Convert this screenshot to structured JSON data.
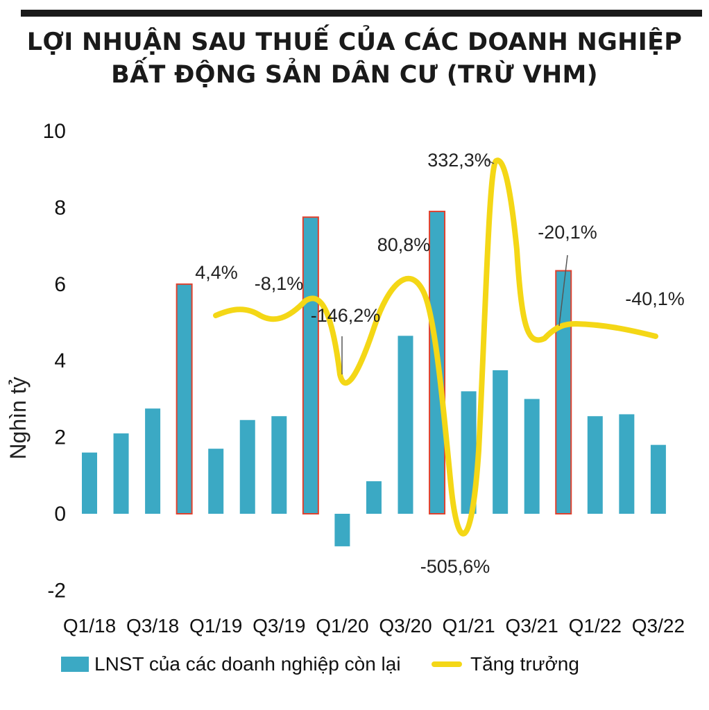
{
  "title_line1": "LỢI NHUẬN SAU THUẾ CỦA CÁC DOANH NGHIỆP",
  "title_line2": "BẤT ĐỘNG SẢN DÂN CƯ (TRỪ VHM)",
  "colors": {
    "bar": "#3ba9c4",
    "bar_highlight_edge": "#e0412e",
    "line": "#f4d716"
  },
  "chart_data": {
    "type": "bar",
    "ylabel": "Nghìn tỷ",
    "ylim": [
      -2,
      10
    ],
    "yticks": [
      "-2",
      "0",
      "2",
      "4",
      "6",
      "8",
      "10"
    ],
    "categories": [
      "Q1/18",
      "Q2/18",
      "Q3/18",
      "Q4/18",
      "Q1/19",
      "Q2/19",
      "Q3/19",
      "Q4/19",
      "Q1/20",
      "Q2/20",
      "Q3/20",
      "Q4/20",
      "Q1/21",
      "Q2/21",
      "Q3/21",
      "Q4/21",
      "Q1/22",
      "Q2/22",
      "Q3/22"
    ],
    "xtick_labels": [
      "Q1/18",
      "Q3/18",
      "Q1/19",
      "Q3/19",
      "Q1/20",
      "Q3/20",
      "Q1/21",
      "Q3/21",
      "Q1/22",
      "Q3/22"
    ],
    "series": [
      {
        "name": "LNST của các doanh nghiệp còn lại",
        "type": "bar",
        "values": [
          1.6,
          2.1,
          2.75,
          6.0,
          1.7,
          2.45,
          2.55,
          7.75,
          -0.85,
          0.85,
          4.65,
          7.9,
          3.2,
          3.75,
          3.0,
          6.35,
          2.55,
          2.6,
          1.8
        ],
        "highlighted": [
          3,
          7,
          11,
          15
        ]
      },
      {
        "name": "Tăng trưởng",
        "type": "line",
        "annotations": [
          {
            "label": "4,4%",
            "category": "Q4/18"
          },
          {
            "label": "-8,1%",
            "category": "Q3/19"
          },
          {
            "label": "-146,2%",
            "category": "Q1/20"
          },
          {
            "label": "80,8%",
            "category": "Q3/20"
          },
          {
            "label": "-505,6%",
            "category": "Q1/21"
          },
          {
            "label": "332,3%",
            "category": "Q2/21"
          },
          {
            "label": "-20,1%",
            "category": "Q4/21"
          },
          {
            "label": "-40,1%",
            "category": "Q3/22"
          }
        ]
      }
    ],
    "legend": [
      {
        "label": "LNST của các doanh nghiệp còn lại",
        "kind": "bar"
      },
      {
        "label": "Tăng trưởng",
        "kind": "line"
      }
    ]
  }
}
